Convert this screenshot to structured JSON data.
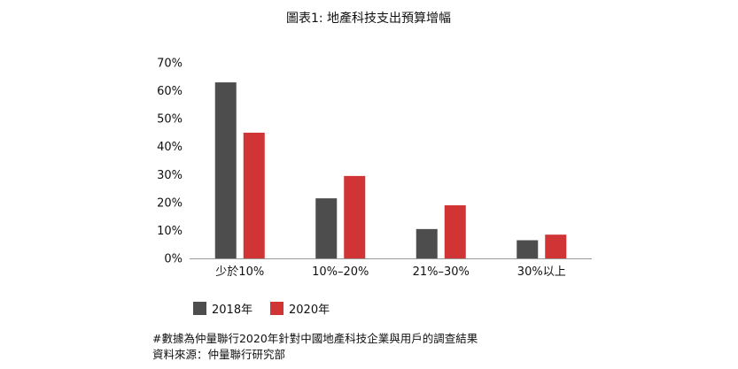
{
  "chart_data": {
    "type": "bar",
    "title": "圖表1: 地產科技支出預算增幅",
    "categories": [
      "少於10%",
      "10%–20%",
      "21%–30%",
      "30%以上"
    ],
    "series": [
      {
        "name": "2018年",
        "values": [
          63,
          21.5,
          10.5,
          6.5
        ]
      },
      {
        "name": "2020年",
        "values": [
          45,
          29.5,
          19,
          8.5
        ]
      }
    ],
    "ylim": [
      0,
      70
    ],
    "yticks": [
      "0%",
      "10%",
      "20%",
      "30%",
      "40%",
      "50%",
      "60%",
      "70%"
    ],
    "xlabel": "",
    "ylabel": "",
    "grid": false,
    "legend_position": "bottom-left",
    "colors": [
      "#4d4d4d",
      "#d03434"
    ]
  },
  "notes": {
    "footnote": "#數據為仲量聯行2020年針對中國地產科技企業與用戶的調查結果",
    "source": "資料來源：仲量聯行研究部"
  }
}
